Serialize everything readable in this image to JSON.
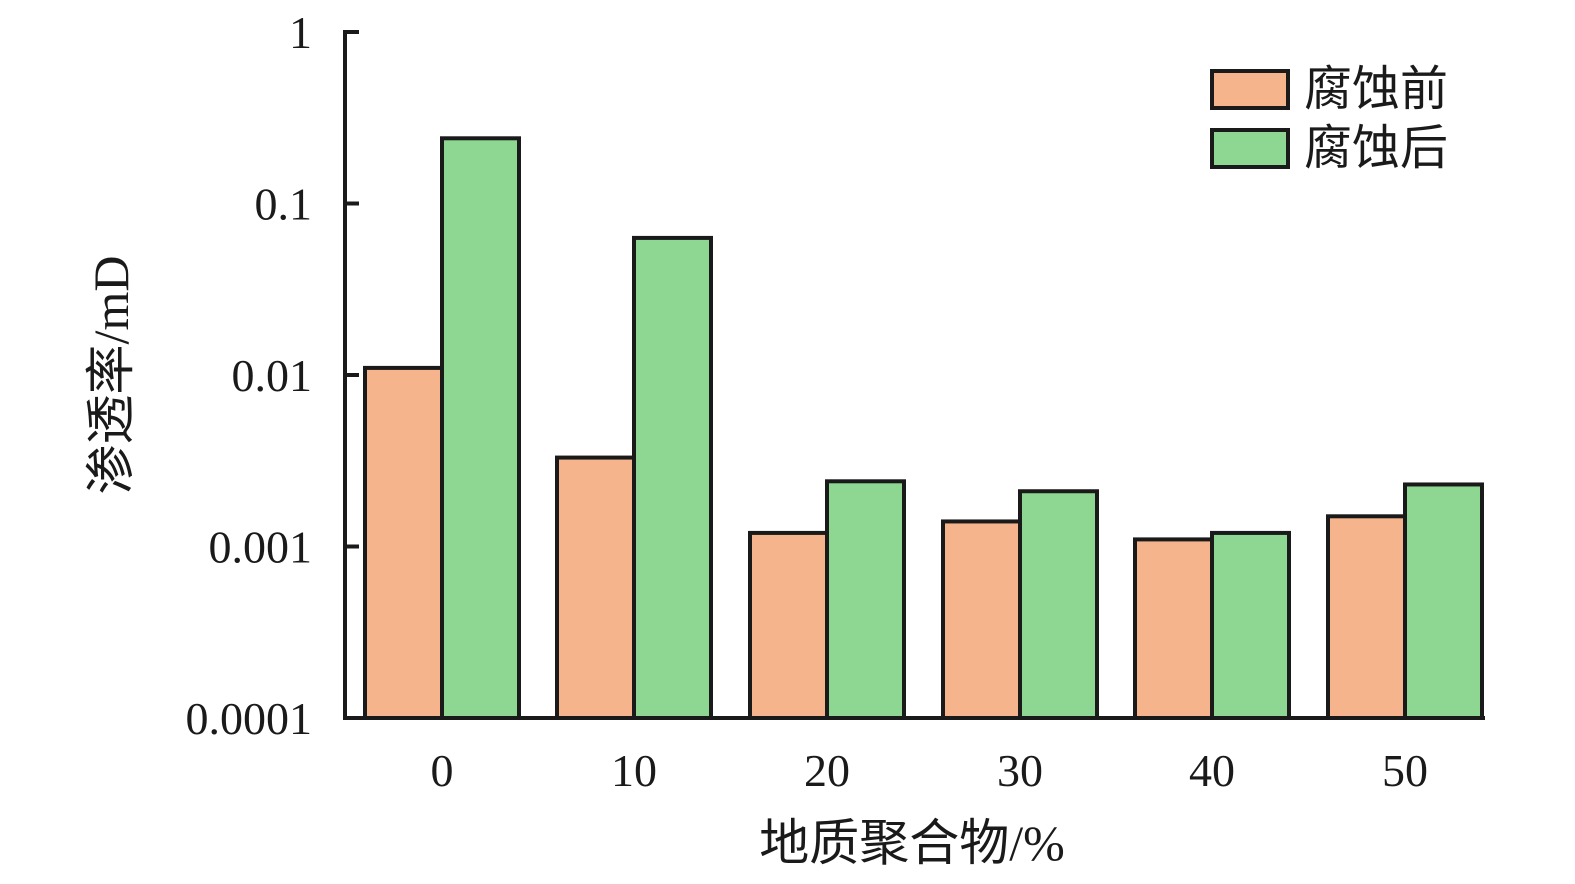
{
  "chart_data": {
    "type": "bar",
    "xlabel": "地质聚合物/%",
    "ylabel": "渗透率/mD",
    "yscale": "log",
    "ylim": [
      0.0001,
      1
    ],
    "y_ticks": [
      {
        "value": 0.0001,
        "label": "0.0001"
      },
      {
        "value": 0.001,
        "label": "0.001"
      },
      {
        "value": 0.01,
        "label": "0.01"
      },
      {
        "value": 0.1,
        "label": "0.1"
      },
      {
        "value": 1,
        "label": "1"
      }
    ],
    "categories": [
      "0",
      "10",
      "20",
      "30",
      "40",
      "50"
    ],
    "series": [
      {
        "name": "腐蚀前",
        "color": "#f5b48b",
        "values": [
          0.011,
          0.0033,
          0.0012,
          0.0014,
          0.0011,
          0.0015
        ]
      },
      {
        "name": "腐蚀后",
        "color": "#8ed793",
        "values": [
          0.24,
          0.063,
          0.0024,
          0.0021,
          0.0012,
          0.0023
        ]
      }
    ],
    "legend_position": "top-right",
    "grid": false,
    "bar_edge_color": "#1a1a1a"
  }
}
